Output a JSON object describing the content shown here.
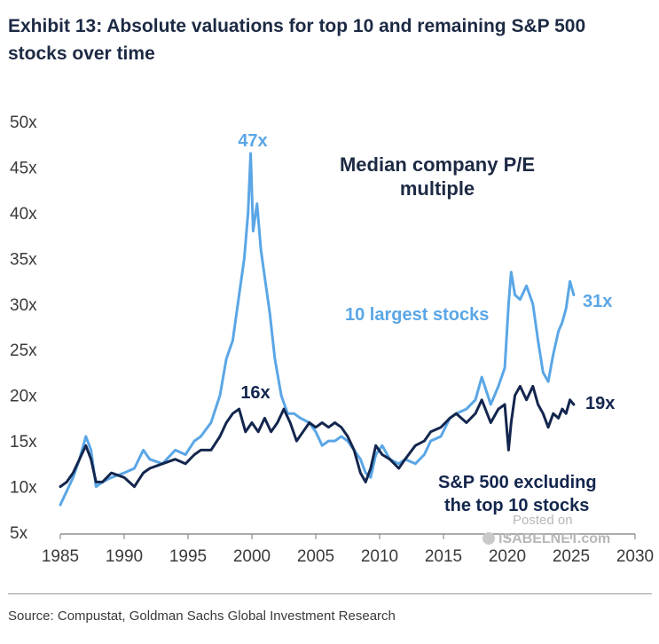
{
  "header": {
    "title_line1": "Exhibit 13: Absolute valuations for top 10 and remaining S&P 500",
    "title_line2": "stocks over time"
  },
  "footer": {
    "source": "Source: Compustat, Goldman Sachs Global Investment Research"
  },
  "watermark": {
    "line1": "Posted on",
    "line2": "ISABELNET.com"
  },
  "colors": {
    "top10": "#5aa6e6",
    "rest": "#13264d",
    "text": "#1d2a44",
    "axis": "#3a3a3a"
  },
  "chart_data": {
    "type": "line",
    "title": "Median company P/E multiple",
    "xlim": [
      1985,
      2030
    ],
    "ylim": [
      5,
      50
    ],
    "x_ticks": [
      1985,
      1990,
      1995,
      2000,
      2005,
      2010,
      2015,
      2020,
      2025,
      2030
    ],
    "y_ticks": [
      5,
      10,
      15,
      20,
      25,
      30,
      35,
      40,
      45,
      50
    ],
    "y_tick_labels": [
      "5x",
      "10x",
      "15x",
      "20x",
      "25x",
      "30x",
      "35x",
      "40x",
      "45x",
      "50x"
    ],
    "grid": false,
    "series": [
      {
        "name": "10 largest stocks",
        "color": "#5aa6e6",
        "x": [
          1985,
          1985.5,
          1986,
          1986.5,
          1987,
          1987.4,
          1987.8,
          1988.3,
          1989,
          1990,
          1990.8,
          1991.5,
          1992,
          1993,
          1994,
          1994.8,
          1995.5,
          1996,
          1996.8,
          1997.5,
          1998,
          1998.5,
          1999,
          1999.4,
          1999.7,
          1999.9,
          2000.1,
          2000.4,
          2000.7,
          2001,
          2001.4,
          2001.8,
          2002.3,
          2002.8,
          2003.3,
          2003.8,
          2004.5,
          2005,
          2005.5,
          2006,
          2006.5,
          2007,
          2007.5,
          2008,
          2008.5,
          2008.9,
          2009.3,
          2009.7,
          2010.2,
          2010.8,
          2011.5,
          2012,
          2012.8,
          2013.5,
          2014,
          2014.8,
          2015.5,
          2016,
          2016.8,
          2017.5,
          2018,
          2018.7,
          2019.3,
          2019.8,
          2020.1,
          2020.3,
          2020.6,
          2021,
          2021.5,
          2022,
          2022.4,
          2022.8,
          2023.2,
          2023.6,
          2024,
          2024.3,
          2024.6,
          2024.9,
          2025.2
        ],
        "values": [
          8,
          9.5,
          11,
          13,
          15.5,
          14,
          10,
          10.5,
          11,
          11.5,
          12,
          14,
          13,
          12.5,
          14,
          13.5,
          15,
          15.5,
          17,
          20,
          24,
          26,
          31,
          35,
          40,
          46.5,
          38,
          41,
          36,
          33,
          29,
          24,
          20,
          18,
          18,
          17.5,
          17,
          16,
          14.5,
          15,
          15,
          15.5,
          15,
          14,
          13,
          11.5,
          11,
          13.5,
          14.5,
          13,
          12.5,
          13,
          12.5,
          13.5,
          15,
          15.5,
          17.5,
          18,
          18.5,
          19.5,
          22,
          19,
          21,
          23,
          30,
          33.5,
          31,
          30.5,
          32,
          30,
          26,
          22.5,
          21.5,
          24.5,
          27,
          28,
          29.5,
          32.5,
          31
        ]
      },
      {
        "name": "S&P 500 excluding the top 10 stocks",
        "color": "#13264d",
        "x": [
          1985,
          1985.5,
          1986,
          1986.5,
          1987,
          1987.4,
          1987.8,
          1988.3,
          1989,
          1990,
          1990.8,
          1991.5,
          1992,
          1993,
          1994,
          1994.8,
          1995.5,
          1996,
          1996.8,
          1997.5,
          1998,
          1998.5,
          1999,
          1999.5,
          2000,
          2000.5,
          2001,
          2001.5,
          2002,
          2002.5,
          2003,
          2003.5,
          2004,
          2004.5,
          2005,
          2005.5,
          2006,
          2006.5,
          2007,
          2007.5,
          2008,
          2008.5,
          2008.9,
          2009.3,
          2009.7,
          2010.2,
          2010.8,
          2011.5,
          2012,
          2012.8,
          2013.5,
          2014,
          2014.8,
          2015.5,
          2016,
          2016.8,
          2017.5,
          2018,
          2018.7,
          2019.3,
          2019.8,
          2020.1,
          2020.3,
          2020.6,
          2021,
          2021.5,
          2022,
          2022.4,
          2022.8,
          2023.2,
          2023.6,
          2024,
          2024.3,
          2024.6,
          2024.9,
          2025.2
        ],
        "values": [
          10,
          10.5,
          11.5,
          13,
          14.5,
          13,
          10.5,
          10.5,
          11.5,
          11,
          10,
          11.5,
          12,
          12.5,
          13,
          12.5,
          13.5,
          14,
          14,
          15.5,
          17,
          18,
          18.5,
          16,
          17,
          16,
          17.5,
          16,
          17,
          18.5,
          17,
          15,
          16,
          17,
          16.5,
          17,
          16.5,
          17,
          16.5,
          15.5,
          14,
          11.5,
          10.5,
          12,
          14.5,
          13.5,
          13,
          12,
          13,
          14.5,
          15,
          16,
          16.5,
          17.5,
          18,
          17,
          18,
          19.5,
          17,
          18.5,
          19,
          14,
          17,
          20,
          21,
          19.5,
          21,
          19,
          18,
          16.5,
          18,
          17.5,
          18.5,
          18,
          19.5,
          19
        ]
      }
    ],
    "annotations": [
      {
        "text": "47x",
        "series": "10 largest stocks"
      },
      {
        "text": "16x",
        "series": "S&P 500 excluding the top 10 stocks"
      },
      {
        "text": "31x",
        "series": "10 largest stocks"
      },
      {
        "text": "19x",
        "series": "S&P 500 excluding the top 10 stocks"
      }
    ],
    "series_labels": {
      "top10": "10 largest stocks",
      "rest_line1": "S&P 500 excluding",
      "rest_line2": "the top 10 stocks"
    }
  }
}
